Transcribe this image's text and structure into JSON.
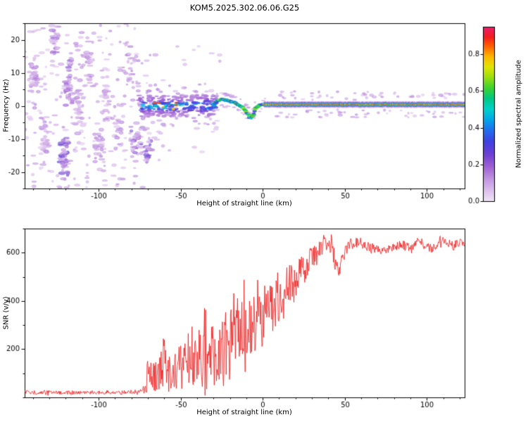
{
  "title": "KOM5.2025.302.06.06.G25",
  "chart_data": [
    {
      "type": "heatmap",
      "name": "doppler-spectrogram",
      "xlabel": "Height of straight line (km)",
      "ylabel": "Frequency (Hz)",
      "xlim": [
        -145,
        123
      ],
      "ylim": [
        -25,
        25
      ],
      "xticks": [
        -100,
        -50,
        0,
        50,
        100
      ],
      "yticks": [
        -20,
        -10,
        0,
        10,
        20
      ],
      "grid": false,
      "colorbar": {
        "label": "Normalized spectral amplitude",
        "ticks": [
          "0.0",
          "0.2",
          "0.4",
          "0.6",
          "0.8"
        ],
        "tick_values": [
          0,
          0.2,
          0.4,
          0.6,
          0.8
        ],
        "range": [
          0,
          0.95
        ],
        "stops": [
          [
            0.0,
            "#f0e4f6"
          ],
          [
            0.06,
            "#dcc0ec"
          ],
          [
            0.13,
            "#c093e0"
          ],
          [
            0.2,
            "#9c5fd2"
          ],
          [
            0.27,
            "#6d3fd4"
          ],
          [
            0.34,
            "#4040e0"
          ],
          [
            0.41,
            "#2070f0"
          ],
          [
            0.47,
            "#00a8e8"
          ],
          [
            0.53,
            "#00d2c8"
          ],
          [
            0.59,
            "#00c882"
          ],
          [
            0.65,
            "#3ed32e"
          ],
          [
            0.71,
            "#9ade12"
          ],
          [
            0.77,
            "#e2e400"
          ],
          [
            0.83,
            "#ffb400"
          ],
          [
            0.89,
            "#ff5e00"
          ],
          [
            0.94,
            "#f21e1e"
          ],
          [
            1.0,
            "#ec1d6e"
          ]
        ]
      },
      "features": {
        "noise_clusters": [
          [
            -139,
            9,
            36,
            3,
            11,
            0.07
          ],
          [
            -133,
            -9,
            30,
            3,
            10,
            0.07
          ],
          [
            -127,
            19,
            24,
            3,
            6,
            0.09
          ],
          [
            -121,
            -16,
            44,
            3,
            7,
            0.13
          ],
          [
            -118,
            7,
            34,
            3,
            10,
            0.09
          ],
          [
            -112,
            -2,
            26,
            3,
            13,
            0.07
          ],
          [
            -106,
            13,
            20,
            3,
            8,
            0.07
          ],
          [
            -100,
            -13,
            26,
            4,
            8,
            0.09
          ],
          [
            -95,
            3,
            20,
            3,
            10,
            0.07
          ],
          [
            -88,
            -6,
            18,
            3,
            8,
            0.07
          ],
          [
            -82,
            11,
            15,
            3,
            6,
            0.07
          ],
          [
            -77,
            -11,
            28,
            4,
            6,
            0.11
          ],
          [
            -70,
            -13,
            22,
            3,
            5,
            0.13
          ]
        ],
        "noise_scatter": {
          "count": 260,
          "x_range": [
            -145,
            -68
          ],
          "f_range": [
            -25,
            25
          ],
          "amp_range": [
            0.03,
            0.12
          ]
        },
        "mid_scatter": {
          "count": 40,
          "x_range": [
            -70,
            -25
          ],
          "f_range": [
            -18,
            18
          ],
          "amp_range": [
            0.03,
            0.09
          ]
        },
        "signal_band": {
          "x_range": [
            -75,
            -28
          ],
          "f_spread": 3.2,
          "amp_peak": 0.45
        },
        "hot_spots": {
          "x_range": [
            -66,
            -52
          ],
          "count": 7,
          "amp_range": [
            0.8,
            0.95
          ]
        },
        "wiggle_path": [
          [
            -30,
            0.5
          ],
          [
            -27,
            1.6
          ],
          [
            -24,
            2.0
          ],
          [
            -21,
            1.7
          ],
          [
            -18,
            1.1
          ],
          [
            -15,
            0.5
          ],
          [
            -13,
            0.0
          ],
          [
            -11,
            -1.2
          ],
          [
            -9,
            -2.6
          ],
          [
            -8,
            -3.4
          ],
          [
            -7,
            -3.9
          ],
          [
            -6,
            -3.0
          ],
          [
            -5,
            -1.6
          ],
          [
            -4,
            -0.6
          ],
          [
            -2,
            0.2
          ],
          [
            0,
            0.4
          ],
          [
            2,
            0.5
          ]
        ],
        "carrier_line": {
          "x_range": [
            1,
            123
          ],
          "freq": 0.4,
          "layers": [
            [
              0.1,
              8.5
            ],
            [
              0.28,
              6.0
            ],
            [
              0.45,
              4.6
            ],
            [
              0.6,
              3.4
            ],
            [
              0.76,
              2.4
            ],
            [
              0.92,
              1.4
            ]
          ]
        },
        "right_scatter": {
          "count": 150,
          "x_range": [
            5,
            123
          ],
          "f_spread": 4.0,
          "amp_range": [
            0.04,
            0.12
          ]
        }
      }
    },
    {
      "type": "line",
      "name": "snr-profile",
      "xlabel": "Height of straight line (km)",
      "ylabel": "SNR (v/v)",
      "xlim": [
        -145,
        123
      ],
      "ylim": [
        0,
        700
      ],
      "xticks": [
        -100,
        -50,
        0,
        50,
        100
      ],
      "yticks": [
        200,
        400,
        600
      ],
      "grid": false,
      "line_color": "#ee1111",
      "series": [
        {
          "name": "SNR",
          "baseline": [
            [
              -145,
              20
            ],
            [
              -120,
              20
            ],
            [
              -100,
              20
            ],
            [
              -80,
              22
            ],
            [
              -73,
              25
            ],
            [
              -70,
              90
            ],
            [
              -67,
              80
            ],
            [
              -63,
              100
            ],
            [
              -58,
              140
            ],
            [
              -55,
              150
            ],
            [
              -52,
              120
            ],
            [
              -48,
              130
            ],
            [
              -45,
              150
            ],
            [
              -42,
              140
            ],
            [
              -38,
              160
            ],
            [
              -35,
              180
            ],
            [
              -32,
              170
            ],
            [
              -28,
              190
            ],
            [
              -25,
              210
            ],
            [
              -22,
              230
            ],
            [
              -18,
              250
            ],
            [
              -15,
              270
            ],
            [
              -12,
              280
            ],
            [
              -10,
              290
            ],
            [
              -8,
              300
            ],
            [
              -5,
              320
            ],
            [
              -2,
              330
            ],
            [
              0,
              340
            ],
            [
              3,
              360
            ],
            [
              6,
              380
            ],
            [
              9,
              400
            ],
            [
              12,
              420
            ],
            [
              15,
              450
            ],
            [
              18,
              470
            ],
            [
              21,
              500
            ],
            [
              24,
              520
            ],
            [
              27,
              550
            ],
            [
              30,
              580
            ],
            [
              33,
              600
            ],
            [
              36,
              620
            ],
            [
              39,
              640
            ],
            [
              42,
              630
            ],
            [
              44,
              560
            ],
            [
              46,
              520
            ],
            [
              48,
              560
            ],
            [
              51,
              610
            ],
            [
              54,
              640
            ],
            [
              58,
              645
            ],
            [
              62,
              630
            ],
            [
              66,
              620
            ],
            [
              70,
              615
            ],
            [
              75,
              610
            ],
            [
              80,
              625
            ],
            [
              85,
              635
            ],
            [
              90,
              618
            ],
            [
              95,
              640
            ],
            [
              100,
              628
            ],
            [
              104,
              612
            ],
            [
              108,
              645
            ],
            [
              112,
              640
            ],
            [
              116,
              630
            ],
            [
              120,
              642
            ],
            [
              123,
              635
            ]
          ],
          "noise_amplitude": [
            [
              -145,
              7
            ],
            [
              -133,
              7
            ],
            [
              -131,
              16
            ],
            [
              -129,
              7
            ],
            [
              -118,
              7
            ],
            [
              -117,
              16
            ],
            [
              -115,
              7
            ],
            [
              -100,
              7
            ],
            [
              -97,
              7
            ],
            [
              -96,
              14
            ],
            [
              -94,
              7
            ],
            [
              -80,
              8
            ],
            [
              -73,
              10
            ],
            [
              -70,
              70
            ],
            [
              -67,
              60
            ],
            [
              -63,
              80
            ],
            [
              -58,
              120
            ],
            [
              -55,
              130
            ],
            [
              -52,
              90
            ],
            [
              -48,
              100
            ],
            [
              -45,
              120
            ],
            [
              -42,
              110
            ],
            [
              -38,
              130
            ],
            [
              -35,
              140
            ],
            [
              -32,
              130
            ],
            [
              -28,
              140
            ],
            [
              -25,
              150
            ],
            [
              -22,
              150
            ],
            [
              -18,
              150
            ],
            [
              -15,
              150
            ],
            [
              -12,
              150
            ],
            [
              -10,
              140
            ],
            [
              -8,
              140
            ],
            [
              -5,
              130
            ],
            [
              -2,
              130
            ],
            [
              0,
              120
            ],
            [
              3,
              110
            ],
            [
              6,
              110
            ],
            [
              9,
              100
            ],
            [
              12,
              100
            ],
            [
              15,
              90
            ],
            [
              18,
              90
            ],
            [
              21,
              80
            ],
            [
              24,
              70
            ],
            [
              27,
              60
            ],
            [
              30,
              50
            ],
            [
              33,
              40
            ],
            [
              36,
              35
            ],
            [
              39,
              30
            ],
            [
              42,
              35
            ],
            [
              44,
              40
            ],
            [
              46,
              30
            ],
            [
              48,
              30
            ],
            [
              51,
              25
            ],
            [
              54,
              22
            ],
            [
              58,
              20
            ],
            [
              62,
              20
            ],
            [
              66,
              20
            ],
            [
              70,
              18
            ],
            [
              75,
              18
            ],
            [
              80,
              18
            ],
            [
              85,
              18
            ],
            [
              90,
              20
            ],
            [
              95,
              18
            ],
            [
              100,
              18
            ],
            [
              104,
              18
            ],
            [
              108,
              18
            ],
            [
              112,
              16
            ],
            [
              116,
              18
            ],
            [
              120,
              16
            ],
            [
              123,
              16
            ]
          ]
        }
      ]
    }
  ]
}
